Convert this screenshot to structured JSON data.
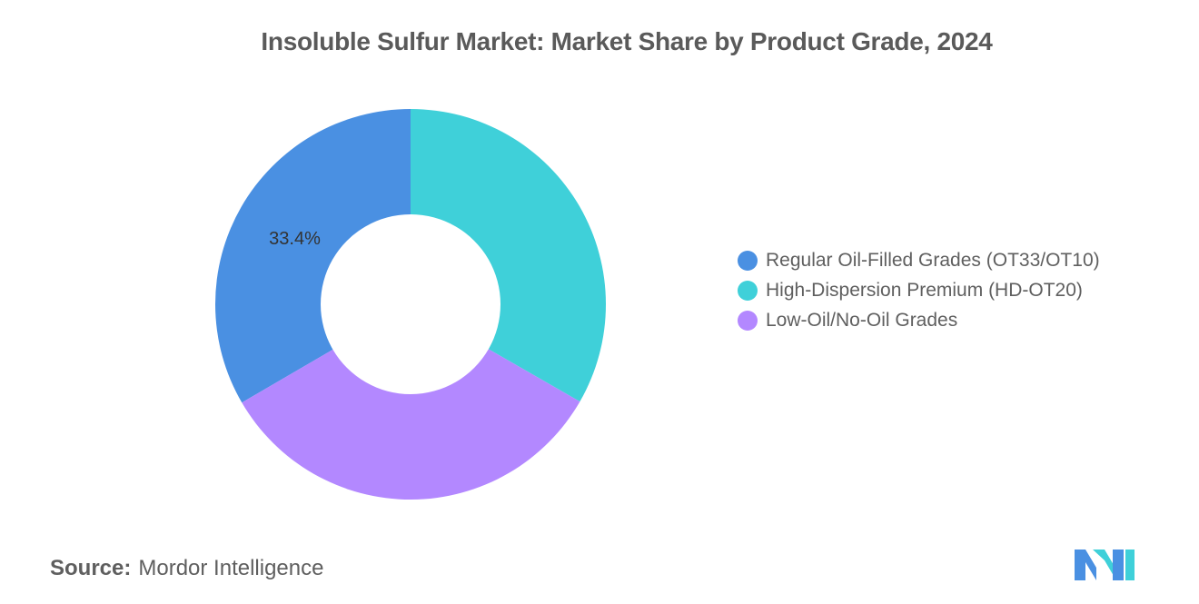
{
  "title": "Insoluble Sulfur Market: Market Share by Product Grade, 2024",
  "chart_data": {
    "type": "pie",
    "variant": "donut",
    "series": [
      {
        "name": "Regular Oil-Filled Grades (OT33/OT10)",
        "value": 33.4,
        "color": "#4a90e2",
        "label": "33.4%"
      },
      {
        "name": "High-Dispersion Premium (HD-OT20)",
        "value": 33.3,
        "color": "#3fd0d9",
        "label": ""
      },
      {
        "name": "Low-Oil/No-Oil Grades",
        "value": 33.3,
        "color": "#b388ff",
        "label": ""
      }
    ],
    "legend_position": "right"
  },
  "source": {
    "label": "Source:",
    "text": "Mordor Intelligence"
  },
  "logo": {
    "icon": "mordor-intelligence-logo-icon",
    "colors": [
      "#3fd0d9",
      "#4a90e2"
    ]
  }
}
